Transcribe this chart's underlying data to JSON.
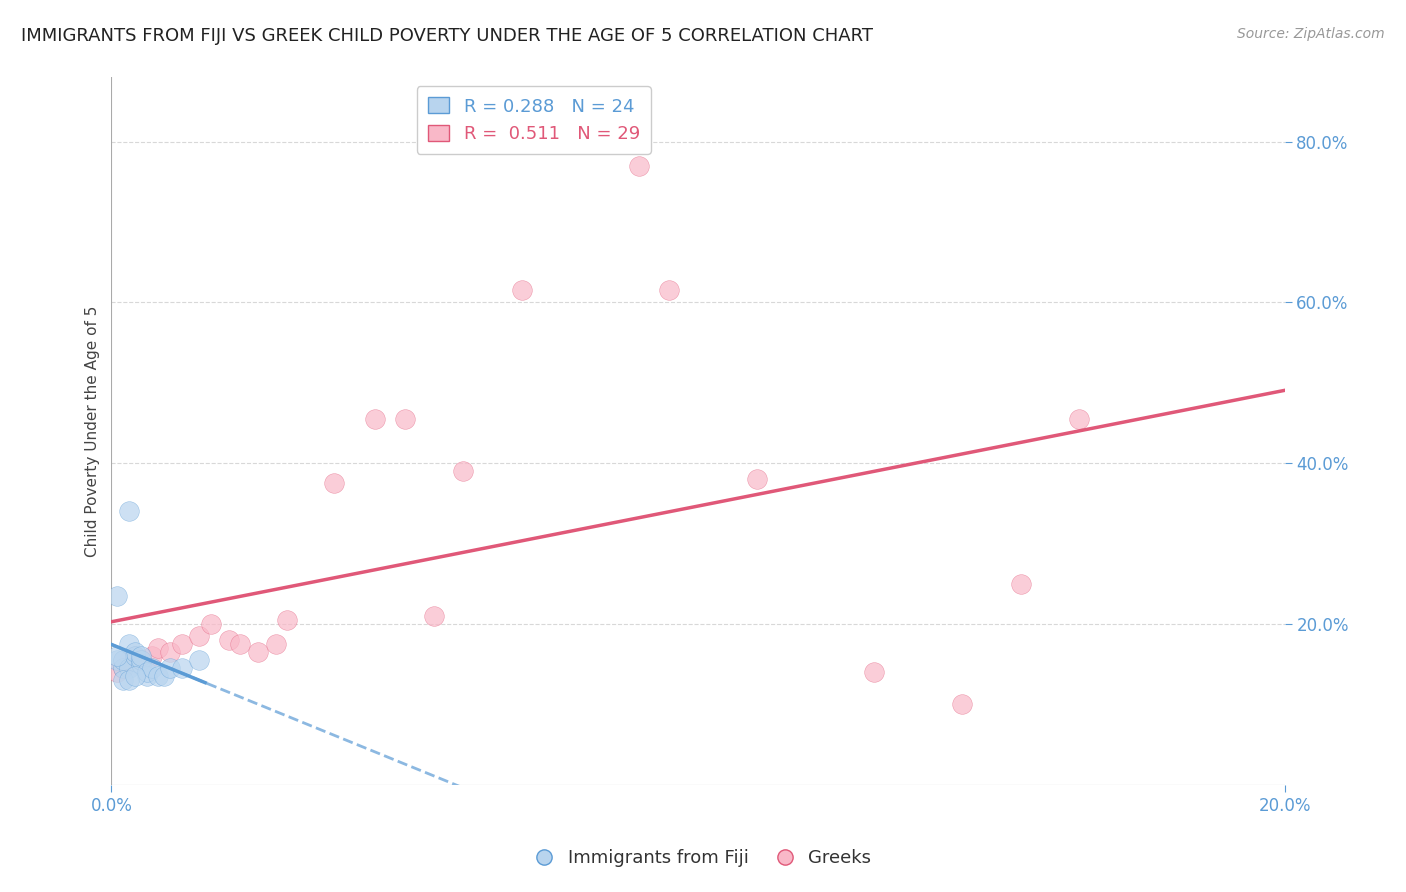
{
  "title": "IMMIGRANTS FROM FIJI VS GREEK CHILD POVERTY UNDER THE AGE OF 5 CORRELATION CHART",
  "source": "Source: ZipAtlas.com",
  "ylabel": "Child Poverty Under the Age of 5",
  "xlim": [
    0.0,
    0.2
  ],
  "ylim": [
    0.0,
    0.88
  ],
  "xticks": [
    0.0,
    0.2
  ],
  "xticklabels": [
    "0.0%",
    "20.0%"
  ],
  "yticks": [
    0.2,
    0.4,
    0.6,
    0.8
  ],
  "yticklabels": [
    "20.0%",
    "40.0%",
    "60.0%",
    "80.0%"
  ],
  "fiji_R": 0.288,
  "fiji_N": 24,
  "greek_R": 0.511,
  "greek_N": 29,
  "fiji_color": "#b8d4ee",
  "greek_color": "#f9b8c8",
  "fiji_line_color": "#5b9bd5",
  "greek_line_color": "#e05878",
  "fiji_x": [
    0.001,
    0.002,
    0.002,
    0.003,
    0.003,
    0.004,
    0.004,
    0.005,
    0.005,
    0.005,
    0.006,
    0.006,
    0.007,
    0.008,
    0.009,
    0.01,
    0.012,
    0.015,
    0.003,
    0.001,
    0.002,
    0.003,
    0.004,
    0.001
  ],
  "fiji_y": [
    0.155,
    0.145,
    0.155,
    0.175,
    0.145,
    0.16,
    0.165,
    0.15,
    0.155,
    0.16,
    0.135,
    0.14,
    0.145,
    0.135,
    0.135,
    0.145,
    0.145,
    0.155,
    0.34,
    0.16,
    0.13,
    0.13,
    0.135,
    0.235
  ],
  "greek_x": [
    0.001,
    0.002,
    0.003,
    0.004,
    0.005,
    0.007,
    0.008,
    0.01,
    0.012,
    0.015,
    0.017,
    0.02,
    0.022,
    0.025,
    0.028,
    0.03,
    0.038,
    0.045,
    0.05,
    0.055,
    0.06,
    0.07,
    0.09,
    0.095,
    0.11,
    0.13,
    0.145,
    0.155,
    0.165
  ],
  "greek_y": [
    0.14,
    0.145,
    0.155,
    0.16,
    0.155,
    0.16,
    0.17,
    0.165,
    0.175,
    0.185,
    0.2,
    0.18,
    0.175,
    0.165,
    0.175,
    0.205,
    0.375,
    0.455,
    0.455,
    0.21,
    0.39,
    0.615,
    0.77,
    0.615,
    0.38,
    0.14,
    0.1,
    0.25,
    0.455
  ],
  "fiji_marker_size": 200,
  "greek_marker_size": 200,
  "background_color": "#ffffff",
  "grid_color": "#d8d8d8",
  "tick_color": "#5b9bd5",
  "title_fontsize": 13,
  "axis_label_fontsize": 11,
  "tick_fontsize": 12,
  "legend_fontsize": 13
}
